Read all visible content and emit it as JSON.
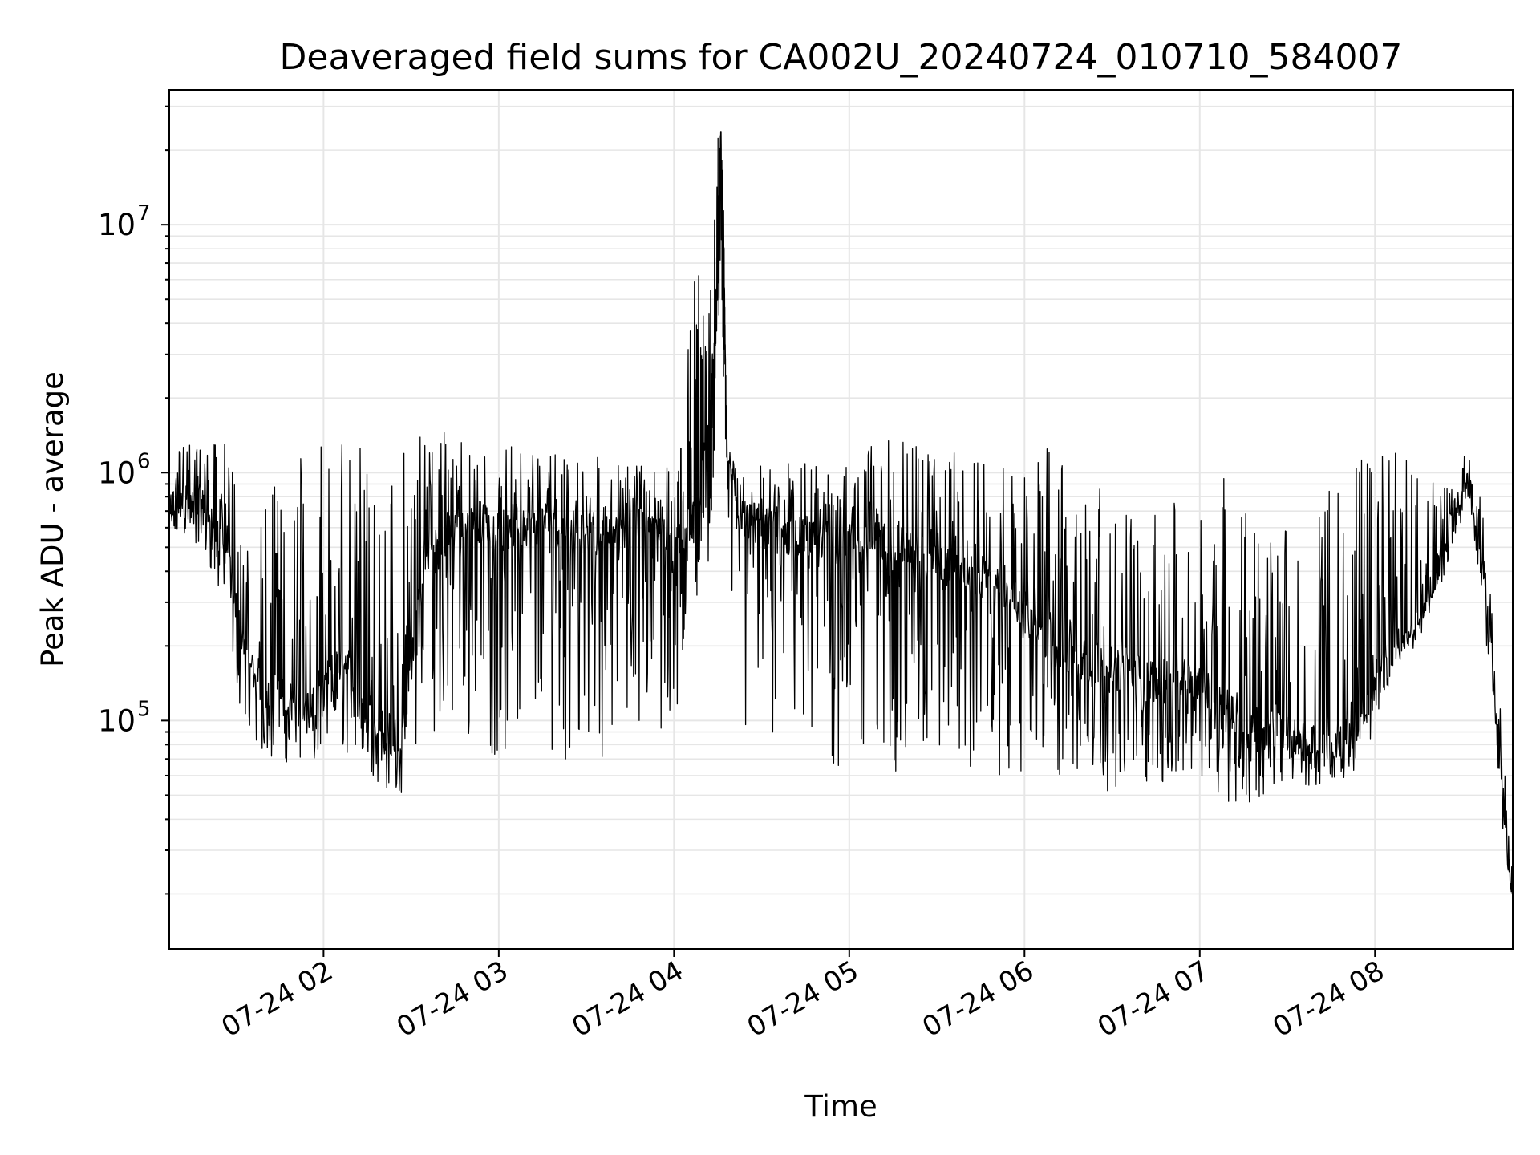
{
  "chart_data": {
    "type": "line",
    "title": "Deaveraged field sums for CA002U_20240724_010710_584007",
    "xlabel": "Time",
    "ylabel": "Peak ADU - average",
    "y_scale": "log",
    "x_axis_type": "datetime",
    "xlim": [
      "2024-07-24 01:07:10",
      "2024-07-24 08:47:10"
    ],
    "ylim": [
      12000,
      35000000
    ],
    "grid": true,
    "line_color": "#000000",
    "grid_color": "#e6e6e6",
    "x_ticks": [
      {
        "value": "2024-07-24 02:00",
        "label": "07-24 02"
      },
      {
        "value": "2024-07-24 03:00",
        "label": "07-24 03"
      },
      {
        "value": "2024-07-24 04:00",
        "label": "07-24 04"
      },
      {
        "value": "2024-07-24 05:00",
        "label": "07-24 05"
      },
      {
        "value": "2024-07-24 06:00",
        "label": "07-24 06"
      },
      {
        "value": "2024-07-24 07:00",
        "label": "07-24 07"
      },
      {
        "value": "2024-07-24 08:00",
        "label": "07-24 08"
      }
    ],
    "y_ticks": [
      {
        "value": 100000,
        "base": "10",
        "exponent": "5"
      },
      {
        "value": 1000000,
        "base": "10",
        "exponent": "6"
      },
      {
        "value": 10000000,
        "base": "10",
        "exponent": "7"
      }
    ],
    "series": [
      {
        "x": [
          "2024-07-24 01:07",
          "2024-07-24 01:12",
          "2024-07-24 01:17",
          "2024-07-24 01:22",
          "2024-07-24 01:27",
          "2024-07-24 01:32",
          "2024-07-24 01:37",
          "2024-07-24 01:42",
          "2024-07-24 01:47",
          "2024-07-24 01:52",
          "2024-07-24 01:57",
          "2024-07-24 02:02",
          "2024-07-24 02:07",
          "2024-07-24 02:12",
          "2024-07-24 02:17",
          "2024-07-24 02:22",
          "2024-07-24 02:27",
          "2024-07-24 02:32",
          "2024-07-24 02:37",
          "2024-07-24 02:42",
          "2024-07-24 02:47",
          "2024-07-24 02:52",
          "2024-07-24 02:57",
          "2024-07-24 03:02",
          "2024-07-24 03:07",
          "2024-07-24 03:12",
          "2024-07-24 03:17",
          "2024-07-24 03:22",
          "2024-07-24 03:27",
          "2024-07-24 03:32",
          "2024-07-24 03:37",
          "2024-07-24 03:42",
          "2024-07-24 03:47",
          "2024-07-24 03:52",
          "2024-07-24 03:57",
          "2024-07-24 04:01",
          "2024-07-24 04:04",
          "2024-07-24 04:08",
          "2024-07-24 04:12",
          "2024-07-24 04:14",
          "2024-07-24 04:15",
          "2024-07-24 04:16",
          "2024-07-24 04:17",
          "2024-07-24 04:18",
          "2024-07-24 04:22",
          "2024-07-24 04:27",
          "2024-07-24 04:32",
          "2024-07-24 04:37",
          "2024-07-24 04:42",
          "2024-07-24 04:47",
          "2024-07-24 04:52",
          "2024-07-24 04:57",
          "2024-07-24 05:02",
          "2024-07-24 05:07",
          "2024-07-24 05:12",
          "2024-07-24 05:17",
          "2024-07-24 05:22",
          "2024-07-24 05:27",
          "2024-07-24 05:32",
          "2024-07-24 05:37",
          "2024-07-24 05:42",
          "2024-07-24 05:47",
          "2024-07-24 05:52",
          "2024-07-24 05:57",
          "2024-07-24 06:02",
          "2024-07-24 06:07",
          "2024-07-24 06:12",
          "2024-07-24 06:17",
          "2024-07-24 06:22",
          "2024-07-24 06:27",
          "2024-07-24 06:32",
          "2024-07-24 06:37",
          "2024-07-24 06:42",
          "2024-07-24 06:47",
          "2024-07-24 06:52",
          "2024-07-24 06:57",
          "2024-07-24 07:02",
          "2024-07-24 07:07",
          "2024-07-24 07:12",
          "2024-07-24 07:17",
          "2024-07-24 07:22",
          "2024-07-24 07:27",
          "2024-07-24 07:32",
          "2024-07-24 07:37",
          "2024-07-24 07:42",
          "2024-07-24 07:47",
          "2024-07-24 07:52",
          "2024-07-24 07:57",
          "2024-07-24 08:02",
          "2024-07-24 08:07",
          "2024-07-24 08:12",
          "2024-07-24 08:17",
          "2024-07-24 08:22",
          "2024-07-24 08:27",
          "2024-07-24 08:32",
          "2024-07-24 08:37",
          "2024-07-24 08:42",
          "2024-07-24 08:47"
        ],
        "y": [
          700000,
          800000,
          750000,
          650000,
          500000,
          200000,
          150000,
          130000,
          120000,
          115000,
          110000,
          150000,
          180000,
          140000,
          100000,
          90000,
          80000,
          300000,
          500000,
          550000,
          600000,
          650000,
          600000,
          580000,
          600000,
          620000,
          640000,
          600000,
          580000,
          560000,
          560000,
          600000,
          620000,
          580000,
          550000,
          500000,
          600000,
          700000,
          1500000,
          3000000,
          10000000,
          22000000,
          8000000,
          1500000,
          700000,
          620000,
          600000,
          560000,
          560000,
          560000,
          540000,
          520000,
          500000,
          520000,
          540000,
          500000,
          480000,
          450000,
          420000,
          400000,
          380000,
          360000,
          330000,
          320000,
          250000,
          220000,
          200000,
          180000,
          170000,
          165000,
          160000,
          155000,
          150000,
          140000,
          145000,
          150000,
          140000,
          120000,
          110000,
          80000,
          90000,
          100000,
          85000,
          80000,
          80000,
          75000,
          90000,
          110000,
          150000,
          200000,
          220000,
          280000,
          400000,
          650000,
          900000,
          450000,
          90000,
          20000
        ],
        "y_low": [
          500000,
          550000,
          450000,
          380000,
          250000,
          100000,
          75000,
          70000,
          68000,
          66000,
          65000,
          70000,
          75000,
          65000,
          58000,
          52000,
          50000,
          80000,
          90000,
          95000,
          80000,
          75000,
          70000,
          72000,
          75000,
          78000,
          75000,
          70000,
          68000,
          70000,
          72000,
          80000,
          85000,
          80000,
          70000,
          90000,
          250000,
          300000,
          450000,
          1100000,
          3000000,
          8000000,
          2000000,
          600000,
          85000,
          75000,
          70000,
          65000,
          60000,
          60000,
          58000,
          58000,
          60000,
          62000,
          62000,
          60000,
          60000,
          60000,
          62000,
          62000,
          60000,
          60000,
          60000,
          58000,
          58000,
          57000,
          56000,
          55000,
          54000,
          52000,
          52000,
          55000,
          55000,
          55000,
          56000,
          56000,
          55000,
          50000,
          45000,
          40000,
          50000,
          55000,
          55000,
          55000,
          52000,
          55000,
          60000,
          75000,
          110000,
          170000,
          210000,
          260000,
          370000,
          600000,
          800000,
          300000,
          60000,
          15000
        ],
        "y_high": [
          1300000,
          1300000,
          1350000,
          1300000,
          1400000,
          800000,
          700000,
          900000,
          1100000,
          1200000,
          1300000,
          1300000,
          1400000,
          1450000,
          1500000,
          1550000,
          1550000,
          1600000,
          1550000,
          1500000,
          1450000,
          1400000,
          1400000,
          1350000,
          1300000,
          1250000,
          1250000,
          1250000,
          1200000,
          1200000,
          1150000,
          1150000,
          1100000,
          1100000,
          1050000,
          1050000,
          4800000,
          6500000,
          4500000,
          12000000,
          26000000,
          26000000,
          12000000,
          1100000,
          1050000,
          1050000,
          1100000,
          1100000,
          1150000,
          1100000,
          1050000,
          1050000,
          1100000,
          1300000,
          1400000,
          1500000,
          1450000,
          1350000,
          1250000,
          1200000,
          1150000,
          1100000,
          1050000,
          1000000,
          1500000,
          1300000,
          1200000,
          1100000,
          1050000,
          1000000,
          950000,
          900000,
          850000,
          800000,
          750000,
          700000,
          650000,
          1100000,
          1000000,
          750000,
          650000,
          600000,
          700000,
          750000,
          800000,
          900000,
          1100000,
          1300000,
          1300000,
          1200000,
          1100000,
          1000000,
          900000,
          1000000,
          1300000,
          700000,
          150000,
          30000
        ]
      }
    ]
  }
}
